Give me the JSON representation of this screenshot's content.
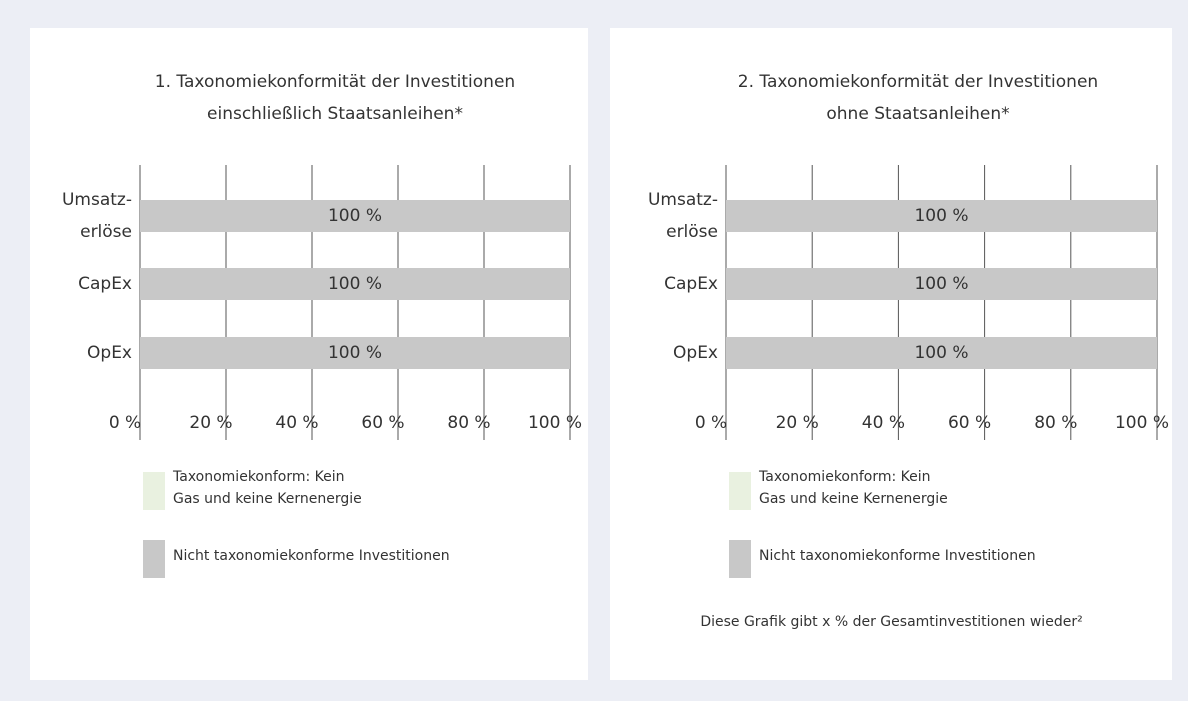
{
  "chart_data": [
    {
      "type": "bar",
      "orientation": "horizontal",
      "stacked": true,
      "title": "1. Taxonomiekonformität der Investitionen\neinschließlich Staatsanleihen*",
      "categories": [
        "Umsatz-\nerlöse",
        "CapEx",
        "OpEx"
      ],
      "series": [
        {
          "name": "Taxonomiekonform: Kein\nGas und keine Kernenergie",
          "color": "#e9f1e0",
          "values": [
            0,
            0,
            0
          ]
        },
        {
          "name": "Nicht taxonomiekonforme Investitionen",
          "color": "#c8c8c8",
          "values": [
            100,
            100,
            100
          ],
          "value_labels": [
            "100 %",
            "100 %",
            "100 %"
          ]
        }
      ],
      "xlim": [
        0,
        100
      ],
      "xticks": [
        {
          "value": 0,
          "label": "0 %"
        },
        {
          "value": 20,
          "label": "20 %"
        },
        {
          "value": 40,
          "label": "40 %"
        },
        {
          "value": 60,
          "label": "60 %"
        },
        {
          "value": 80,
          "label": "80 %"
        },
        {
          "value": 100,
          "label": "100 %"
        }
      ],
      "grid": true
    },
    {
      "type": "bar",
      "orientation": "horizontal",
      "stacked": true,
      "title": "2. Taxonomiekonformität der Investitionen\nohne Staatsanleihen*",
      "categories": [
        "Umsatz-\nerlöse",
        "CapEx",
        "OpEx"
      ],
      "series": [
        {
          "name": "Taxonomiekonform: Kein\nGas und keine Kernenergie",
          "color": "#e9f1e0",
          "values": [
            0,
            0,
            0
          ]
        },
        {
          "name": "Nicht taxonomiekonforme Investitionen",
          "color": "#c8c8c8",
          "values": [
            100,
            100,
            100
          ],
          "value_labels": [
            "100 %",
            "100 %",
            "100 %"
          ]
        }
      ],
      "xlim": [
        0,
        100
      ],
      "xticks": [
        {
          "value": 0,
          "label": "0 %"
        },
        {
          "value": 20,
          "label": "20 %"
        },
        {
          "value": 40,
          "label": "40 %"
        },
        {
          "value": 60,
          "label": "60 %"
        },
        {
          "value": 80,
          "label": "80 %"
        },
        {
          "value": 100,
          "label": "100 %"
        }
      ],
      "grid": true,
      "note": "Diese Grafik gibt x % der Gesamtinvestitionen wieder²"
    }
  ]
}
